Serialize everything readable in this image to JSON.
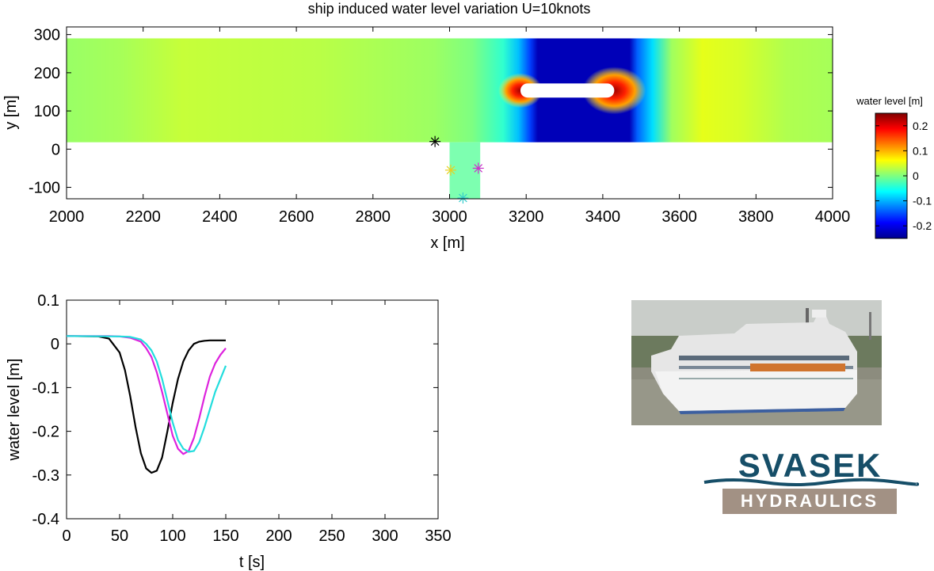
{
  "title": "ship induced water level variation U=10knots",
  "chart_data": [
    {
      "type": "heatmap",
      "title": "ship induced water level variation U=10knots",
      "xlabel": "x [m]",
      "ylabel": "y [m]",
      "xlim": [
        2000,
        4000
      ],
      "ylim": [
        -130,
        320
      ],
      "xticks": [
        2000,
        2200,
        2400,
        2600,
        2800,
        3000,
        3200,
        3400,
        3600,
        3800,
        4000
      ],
      "yticks": [
        -100,
        0,
        100,
        200,
        300
      ],
      "ytick_labels": [
        "-100",
        "0",
        "100",
        "200",
        "300"
      ],
      "channel": {
        "x": [
          2000,
          4000
        ],
        "y": [
          18,
          290
        ]
      },
      "side_basin": {
        "x": [
          3000,
          3080
        ],
        "y": [
          -130,
          18
        ]
      },
      "ship": {
        "x": [
          3185,
          3430
        ],
        "y": [
          135,
          172
        ]
      },
      "markers": [
        {
          "x": 2962,
          "y": 20,
          "color": "#000000"
        },
        {
          "x": 3003,
          "y": -55,
          "color": "#e8d020"
        },
        {
          "x": 3075,
          "y": -50,
          "color": "#cc33cc"
        },
        {
          "x": 3035,
          "y": -128,
          "color": "#33cccc"
        }
      ],
      "colorbar": {
        "label": "water level [m]",
        "range": [
          -0.25,
          0.25
        ],
        "ticks": [
          0.2,
          0.1,
          0,
          -0.1,
          -0.2
        ],
        "tick_labels": [
          "0.2",
          "0.1",
          "0",
          "-0.1",
          "-0.2"
        ]
      }
    },
    {
      "type": "line",
      "xlabel": "t [s]",
      "ylabel": "water level [m]",
      "xlim": [
        0,
        350
      ],
      "ylim": [
        -0.4,
        0.1
      ],
      "xticks": [
        0,
        50,
        100,
        150,
        200,
        250,
        300,
        350
      ],
      "xtick_labels": [
        "0",
        "50",
        "100",
        "150",
        "200",
        "250",
        "300",
        "350"
      ],
      "yticks": [
        0.1,
        0,
        -0.1,
        -0.2,
        -0.3,
        -0.4
      ],
      "ytick_labels": [
        "0.1",
        "0",
        "-0.1",
        "-0.2",
        "-0.3",
        "-0.4"
      ],
      "series": [
        {
          "color": "#000000",
          "t": [
            0,
            30,
            40,
            50,
            55,
            60,
            65,
            70,
            75,
            80,
            85,
            90,
            95,
            100,
            105,
            110,
            115,
            120,
            125,
            130,
            135,
            140,
            145,
            150
          ],
          "y": [
            0.018,
            0.017,
            0.012,
            -0.02,
            -0.06,
            -0.12,
            -0.19,
            -0.25,
            -0.285,
            -0.295,
            -0.29,
            -0.26,
            -0.2,
            -0.135,
            -0.08,
            -0.04,
            -0.015,
            0.0,
            0.005,
            0.007,
            0.008,
            0.008,
            0.008,
            0.008
          ]
        },
        {
          "color": "#dd22dd",
          "t": [
            0,
            40,
            50,
            60,
            70,
            75,
            80,
            85,
            90,
            95,
            100,
            105,
            110,
            115,
            120,
            125,
            130,
            135,
            140,
            145,
            150
          ],
          "y": [
            0.018,
            0.018,
            0.017,
            0.014,
            0.005,
            -0.01,
            -0.03,
            -0.065,
            -0.11,
            -0.16,
            -0.21,
            -0.24,
            -0.252,
            -0.245,
            -0.215,
            -0.17,
            -0.12,
            -0.075,
            -0.045,
            -0.025,
            -0.01
          ]
        },
        {
          "color": "#22dddd",
          "t": [
            0,
            50,
            60,
            70,
            75,
            80,
            85,
            90,
            95,
            100,
            105,
            110,
            115,
            120,
            125,
            130,
            135,
            140,
            145,
            150
          ],
          "y": [
            0.018,
            0.017,
            0.016,
            0.01,
            0.0,
            -0.015,
            -0.04,
            -0.08,
            -0.13,
            -0.18,
            -0.22,
            -0.24,
            -0.247,
            -0.245,
            -0.225,
            -0.19,
            -0.15,
            -0.11,
            -0.08,
            -0.05
          ]
        }
      ]
    }
  ],
  "logo": {
    "top": "SVASEK",
    "bottom": "HYDRAULICS"
  }
}
